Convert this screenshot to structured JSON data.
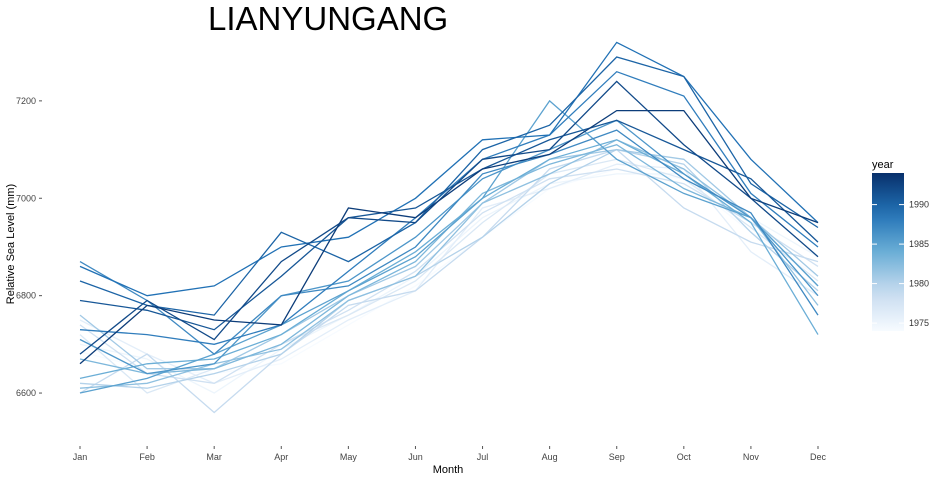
{
  "chart_data": {
    "type": "line",
    "title": "LIANYUNGANG",
    "xlabel": "Month",
    "ylabel": "Relative Sea Level (mm)",
    "categories": [
      "Jan",
      "Feb",
      "Mar",
      "Apr",
      "May",
      "Jun",
      "Jul",
      "Aug",
      "Sep",
      "Oct",
      "Nov",
      "Dec"
    ],
    "y_ticks": [
      6600,
      6800,
      7000,
      7200
    ],
    "ylim": [
      6520,
      7325
    ],
    "grid": false,
    "legend": {
      "title": "year",
      "placement": "right",
      "type": "colorbar",
      "ticks": [
        1975,
        1980,
        1985,
        1990
      ],
      "range": [
        1974,
        1994
      ],
      "low_color": "#f7fbff",
      "high_color": "#08306b"
    },
    "series": [
      {
        "year": 1974,
        "values": [
          6685,
          6650,
          6640,
          6660,
          6740,
          6820,
          6920,
          7020,
          7060,
          7040,
          6930,
          6840
        ]
      },
      {
        "year": 1975,
        "values": [
          6700,
          6670,
          6600,
          6690,
          6760,
          6840,
          6960,
          7030,
          7050,
          7050,
          6960,
          6880
        ]
      },
      {
        "year": 1976,
        "values": [
          6750,
          6680,
          6620,
          6670,
          6750,
          6810,
          6980,
          7020,
          7070,
          7060,
          6890,
          6800
        ]
      },
      {
        "year": 1977,
        "values": [
          6720,
          6600,
          6650,
          6700,
          6760,
          6830,
          6950,
          7050,
          7080,
          7040,
          6940,
          6830
        ]
      },
      {
        "year": 1978,
        "values": [
          6740,
          6640,
          6620,
          6700,
          6770,
          6850,
          6970,
          7040,
          7060,
          7030,
          6950,
          6860
        ]
      },
      {
        "year": 1979,
        "values": [
          6600,
          6680,
          6560,
          6680,
          6780,
          6810,
          6920,
          7060,
          7100,
          6980,
          6910,
          6870
        ]
      },
      {
        "year": 1980,
        "values": [
          6620,
          6610,
          6640,
          6680,
          6790,
          6840,
          6920,
          7030,
          7100,
          7070,
          6930,
          6810
        ]
      },
      {
        "year": 1981,
        "values": [
          6760,
          6650,
          6650,
          6720,
          6800,
          6860,
          6990,
          7080,
          7100,
          7080,
          6960,
          6840
        ]
      },
      {
        "year": 1982,
        "values": [
          6610,
          6620,
          6660,
          6690,
          6790,
          6840,
          6990,
          7050,
          7120,
          7060,
          6960,
          6780
        ]
      },
      {
        "year": 1983,
        "values": [
          6670,
          6640,
          6650,
          6700,
          6800,
          6870,
          7010,
          7070,
          7110,
          7020,
          6960,
          6820
        ]
      },
      {
        "year": 1984,
        "values": [
          6630,
          6660,
          6670,
          6720,
          6810,
          6890,
          7000,
          7080,
          7120,
          7050,
          6950,
          6720
        ]
      },
      {
        "year": 1985,
        "values": [
          6600,
          6630,
          6680,
          6740,
          6810,
          6880,
          7000,
          7200,
          7080,
          7010,
          6960,
          6820
        ]
      },
      {
        "year": 1986,
        "values": [
          6710,
          6640,
          6660,
          6800,
          6830,
          6920,
          7040,
          7100,
          7160,
          7050,
          6960,
          6800
        ]
      },
      {
        "year": 1987,
        "values": [
          6870,
          6790,
          6680,
          6800,
          6820,
          6900,
          7050,
          7090,
          7140,
          7040,
          6970,
          6760
        ]
      },
      {
        "year": 1988,
        "values": [
          6730,
          6720,
          6700,
          6740,
          6850,
          6960,
          7080,
          7130,
          7260,
          7210,
          7010,
          6900
        ]
      },
      {
        "year": 1989,
        "values": [
          6860,
          6800,
          6820,
          6900,
          6920,
          7000,
          7120,
          7130,
          7320,
          7250,
          7080,
          6950
        ]
      },
      {
        "year": 1990,
        "values": [
          6830,
          6780,
          6760,
          6930,
          6870,
          6950,
          7100,
          7150,
          7290,
          7250,
          7030,
          6940
        ]
      },
      {
        "year": 1991,
        "values": [
          6790,
          6770,
          6730,
          6840,
          6960,
          6980,
          7060,
          7120,
          7160,
          7100,
          7040,
          6910
        ]
      },
      {
        "year": 1992,
        "values": [
          6680,
          6790,
          6710,
          6870,
          6960,
          6950,
          7080,
          7100,
          7240,
          7110,
          7000,
          6880
        ]
      },
      {
        "year": 1993,
        "values": [
          6660,
          6780,
          6750,
          6740,
          6980,
          6960,
          7060,
          7090,
          7180,
          7180,
          7000,
          6950
        ]
      }
    ]
  }
}
